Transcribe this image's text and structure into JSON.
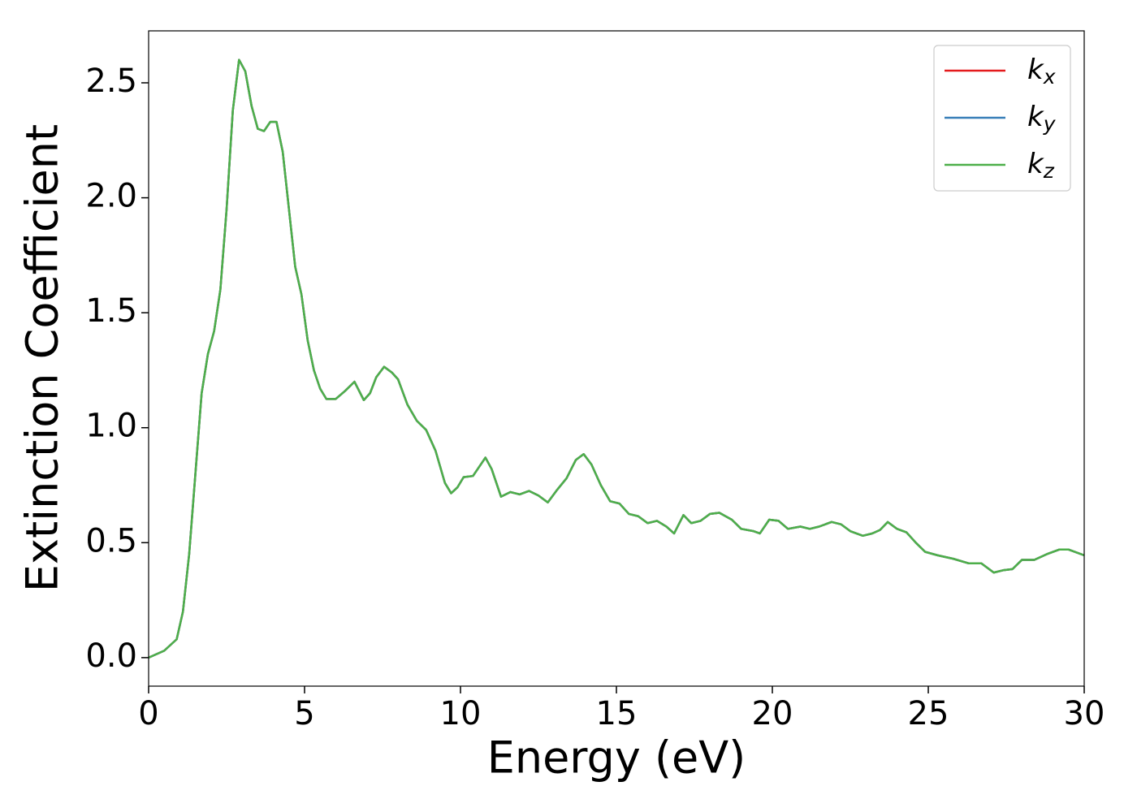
{
  "chart_data": {
    "type": "line",
    "xlabel": "Energy (eV)",
    "ylabel": "Extinction Coefficient",
    "x": [
      0,
      0.5,
      0.9,
      1.1,
      1.3,
      1.5,
      1.7,
      1.9,
      2.1,
      2.3,
      2.5,
      2.7,
      2.9,
      3.1,
      3.3,
      3.5,
      3.7,
      3.9,
      4.1,
      4.3,
      4.5,
      4.7,
      4.9,
      5.1,
      5.3,
      5.5,
      5.7,
      6.0,
      6.3,
      6.6,
      6.9,
      7.1,
      7.3,
      7.55,
      7.8,
      8.0,
      8.3,
      8.6,
      8.9,
      9.2,
      9.5,
      9.7,
      9.9,
      10.1,
      10.4,
      10.8,
      11.0,
      11.3,
      11.6,
      11.9,
      12.2,
      12.5,
      12.8,
      13.1,
      13.4,
      13.7,
      13.95,
      14.2,
      14.5,
      14.8,
      15.1,
      15.4,
      15.7,
      16.0,
      16.3,
      16.6,
      16.85,
      17.15,
      17.4,
      17.7,
      18.0,
      18.3,
      18.7,
      19.0,
      19.4,
      19.6,
      19.9,
      20.2,
      20.5,
      20.9,
      21.2,
      21.5,
      21.9,
      22.2,
      22.5,
      22.9,
      23.2,
      23.45,
      23.7,
      24.0,
      24.3,
      24.6,
      24.9,
      25.3,
      25.8,
      26.3,
      26.7,
      27.1,
      27.4,
      27.7,
      28.0,
      28.4,
      28.8,
      29.2,
      29.5,
      30.0
    ],
    "series": [
      {
        "name": "kx",
        "color": "#e41a1c",
        "values": [
          0.0,
          0.03,
          0.08,
          0.2,
          0.45,
          0.8,
          1.15,
          1.32,
          1.42,
          1.6,
          1.95,
          2.38,
          2.6,
          2.55,
          2.4,
          2.3,
          2.29,
          2.33,
          2.33,
          2.2,
          1.95,
          1.7,
          1.58,
          1.38,
          1.25,
          1.17,
          1.125,
          1.125,
          1.16,
          1.2,
          1.12,
          1.15,
          1.22,
          1.265,
          1.24,
          1.21,
          1.1,
          1.03,
          0.99,
          0.9,
          0.76,
          0.715,
          0.74,
          0.785,
          0.79,
          0.87,
          0.82,
          0.7,
          0.72,
          0.71,
          0.725,
          0.705,
          0.675,
          0.73,
          0.78,
          0.86,
          0.885,
          0.84,
          0.75,
          0.68,
          0.67,
          0.625,
          0.615,
          0.585,
          0.595,
          0.57,
          0.54,
          0.62,
          0.585,
          0.595,
          0.625,
          0.63,
          0.6,
          0.56,
          0.55,
          0.54,
          0.6,
          0.595,
          0.56,
          0.57,
          0.56,
          0.57,
          0.59,
          0.58,
          0.55,
          0.53,
          0.54,
          0.555,
          0.59,
          0.56,
          0.545,
          0.5,
          0.46,
          0.445,
          0.43,
          0.41,
          0.41,
          0.37,
          0.38,
          0.385,
          0.425,
          0.425,
          0.45,
          0.47,
          0.47,
          0.445
        ]
      },
      {
        "name": "ky",
        "color": "#377eb8",
        "values": [
          0.0,
          0.03,
          0.08,
          0.2,
          0.45,
          0.8,
          1.15,
          1.32,
          1.42,
          1.6,
          1.95,
          2.38,
          2.6,
          2.55,
          2.4,
          2.3,
          2.29,
          2.33,
          2.33,
          2.2,
          1.95,
          1.7,
          1.58,
          1.38,
          1.25,
          1.17,
          1.125,
          1.125,
          1.16,
          1.2,
          1.12,
          1.15,
          1.22,
          1.265,
          1.24,
          1.21,
          1.1,
          1.03,
          0.99,
          0.9,
          0.76,
          0.715,
          0.74,
          0.785,
          0.79,
          0.87,
          0.82,
          0.7,
          0.72,
          0.71,
          0.725,
          0.705,
          0.675,
          0.73,
          0.78,
          0.86,
          0.885,
          0.84,
          0.75,
          0.68,
          0.67,
          0.625,
          0.615,
          0.585,
          0.595,
          0.57,
          0.54,
          0.62,
          0.585,
          0.595,
          0.625,
          0.63,
          0.6,
          0.56,
          0.55,
          0.54,
          0.6,
          0.595,
          0.56,
          0.57,
          0.56,
          0.57,
          0.59,
          0.58,
          0.55,
          0.53,
          0.54,
          0.555,
          0.59,
          0.56,
          0.545,
          0.5,
          0.46,
          0.445,
          0.43,
          0.41,
          0.41,
          0.37,
          0.38,
          0.385,
          0.425,
          0.425,
          0.45,
          0.47,
          0.47,
          0.445
        ]
      },
      {
        "name": "kz",
        "color": "#4daf4a",
        "values": [
          0.0,
          0.03,
          0.08,
          0.2,
          0.45,
          0.8,
          1.15,
          1.32,
          1.42,
          1.6,
          1.95,
          2.38,
          2.6,
          2.55,
          2.4,
          2.3,
          2.29,
          2.33,
          2.33,
          2.2,
          1.95,
          1.7,
          1.58,
          1.38,
          1.25,
          1.17,
          1.125,
          1.125,
          1.16,
          1.2,
          1.12,
          1.15,
          1.22,
          1.265,
          1.24,
          1.21,
          1.1,
          1.03,
          0.99,
          0.9,
          0.76,
          0.715,
          0.74,
          0.785,
          0.79,
          0.87,
          0.82,
          0.7,
          0.72,
          0.71,
          0.725,
          0.705,
          0.675,
          0.73,
          0.78,
          0.86,
          0.885,
          0.84,
          0.75,
          0.68,
          0.67,
          0.625,
          0.615,
          0.585,
          0.595,
          0.57,
          0.54,
          0.62,
          0.585,
          0.595,
          0.625,
          0.63,
          0.6,
          0.56,
          0.55,
          0.54,
          0.6,
          0.595,
          0.56,
          0.57,
          0.56,
          0.57,
          0.59,
          0.58,
          0.55,
          0.53,
          0.54,
          0.555,
          0.59,
          0.56,
          0.545,
          0.5,
          0.46,
          0.445,
          0.43,
          0.41,
          0.41,
          0.37,
          0.38,
          0.385,
          0.425,
          0.425,
          0.45,
          0.47,
          0.47,
          0.445
        ]
      }
    ],
    "xlim": [
      0,
      30
    ],
    "xticks": [
      0,
      5,
      10,
      15,
      20,
      25,
      30
    ],
    "ylim": [
      -0.124,
      2.726
    ],
    "yticks": [
      {
        "value": 0,
        "label": "0.0"
      },
      {
        "value": 0.5,
        "label": "0.5"
      },
      {
        "value": 1,
        "label": "1.0"
      },
      {
        "value": 1.5,
        "label": "1.5"
      },
      {
        "value": 2,
        "label": "2.0"
      },
      {
        "value": 2.5,
        "label": "2.5"
      }
    ],
    "legend": "upper right",
    "grid": false
  }
}
